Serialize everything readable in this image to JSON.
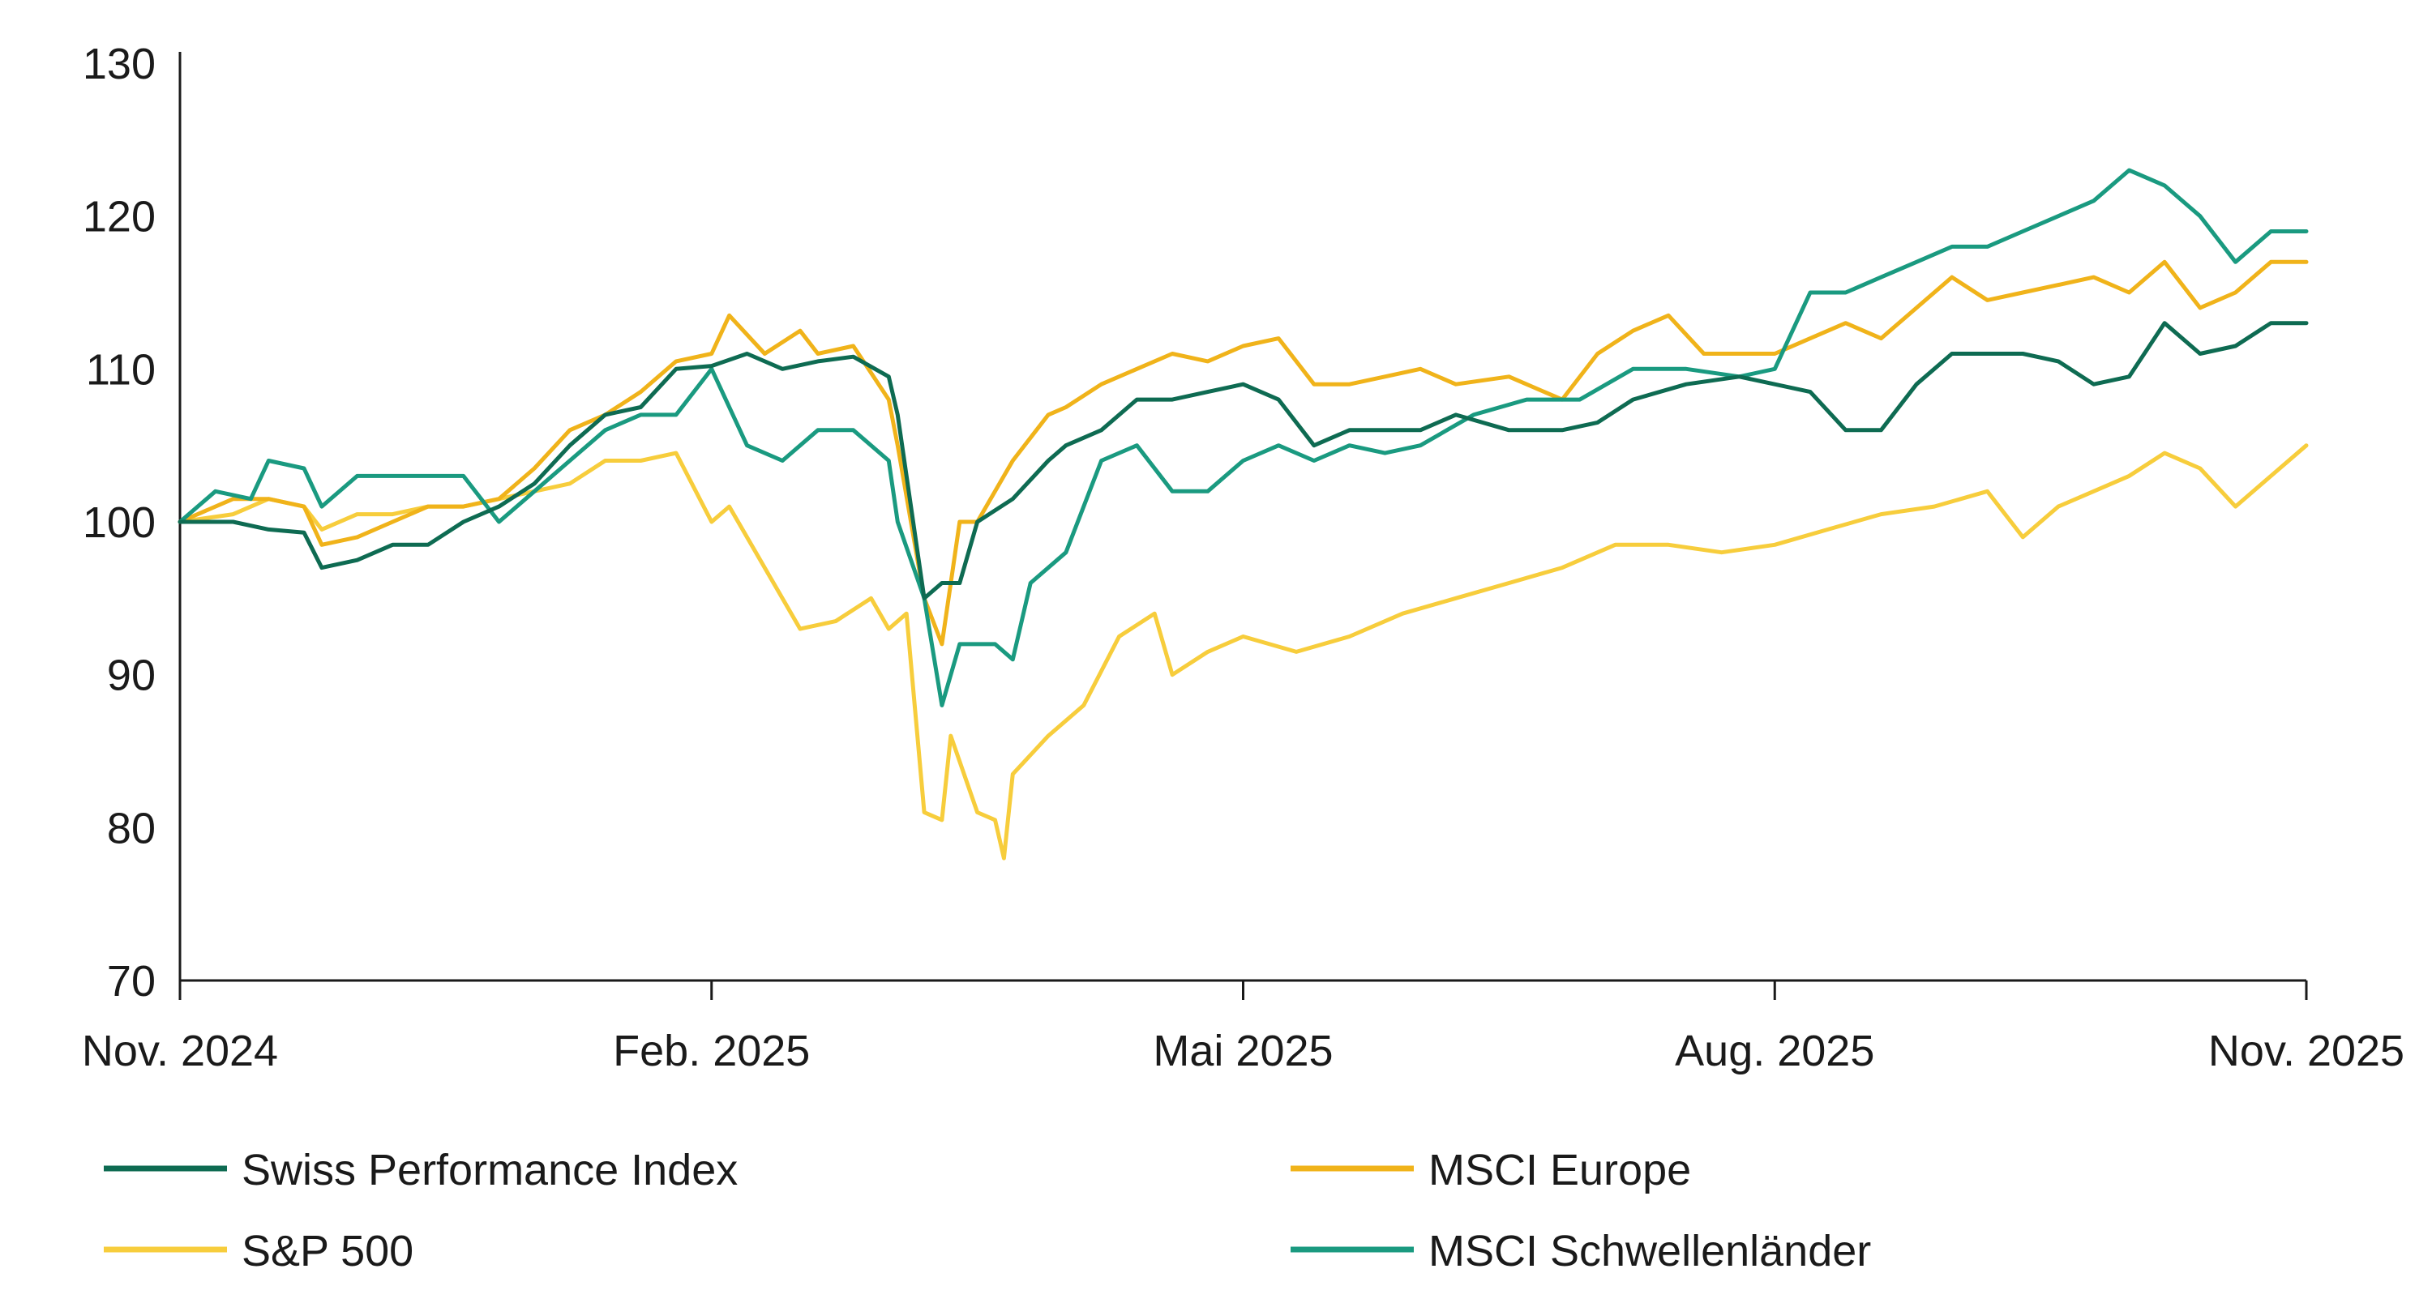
{
  "colors": {
    "swiss": "#0e6b52",
    "europe": "#f0b31a",
    "sp500": "#f7cd3c",
    "emerging": "#1a9a80",
    "axis": "#1a1a1a",
    "text": "#1a1a1a"
  },
  "chart_data": {
    "type": "line",
    "title": "",
    "xlabel": "",
    "ylabel": "",
    "ylim": [
      70,
      130
    ],
    "xlim": [
      0,
      12
    ],
    "grid": false,
    "legend_position": "bottom",
    "y_ticks": [
      {
        "value": 70,
        "label": "70"
      },
      {
        "value": 80,
        "label": "80"
      },
      {
        "value": 90,
        "label": "90"
      },
      {
        "value": 100,
        "label": "100"
      },
      {
        "value": 110,
        "label": "110"
      },
      {
        "value": 120,
        "label": "120"
      },
      {
        "value": 130,
        "label": "130"
      }
    ],
    "x_ticks": [
      {
        "value": 0,
        "label": "Nov. 2024"
      },
      {
        "value": 3,
        "label": "Feb. 2025"
      },
      {
        "value": 6,
        "label": "Mai 2025"
      },
      {
        "value": 9,
        "label": "Aug. 2025"
      },
      {
        "value": 12,
        "label": "Nov. 2025"
      }
    ],
    "series": [
      {
        "name": "Swiss Performance Index",
        "color_key": "swiss",
        "x": [
          0,
          0.3,
          0.5,
          0.7,
          0.8,
          1.0,
          1.2,
          1.4,
          1.6,
          1.8,
          2.0,
          2.2,
          2.4,
          2.6,
          2.8,
          3.0,
          3.2,
          3.4,
          3.6,
          3.8,
          4.0,
          4.05,
          4.2,
          4.3,
          4.4,
          4.5,
          4.7,
          4.9,
          5.0,
          5.2,
          5.4,
          5.6,
          5.8,
          6.0,
          6.2,
          6.4,
          6.6,
          6.8,
          7.0,
          7.2,
          7.5,
          7.8,
          8.0,
          8.2,
          8.5,
          8.8,
          9.0,
          9.2,
          9.4,
          9.6,
          9.8,
          10.0,
          10.2,
          10.4,
          10.6,
          10.8,
          11.0,
          11.2,
          11.4,
          11.6,
          11.8,
          12.0
        ],
        "values": [
          100,
          100,
          99.5,
          99.3,
          97,
          97.5,
          98.5,
          98.5,
          100,
          101,
          102.5,
          105,
          107,
          107.5,
          110,
          110.2,
          111,
          110,
          110.5,
          110.8,
          109.5,
          107,
          95,
          96,
          96,
          100,
          101.5,
          104,
          105,
          106,
          108,
          108,
          108.5,
          109,
          108,
          105,
          106,
          106,
          106,
          107,
          106,
          106,
          106.5,
          108,
          109,
          109.5,
          109,
          108.5,
          106,
          106,
          109,
          111,
          111,
          111,
          110.5,
          109,
          109.5,
          113,
          111,
          111.5,
          113,
          113
        ]
      },
      {
        "name": "MSCI Europe",
        "color_key": "europe",
        "x": [
          0,
          0.3,
          0.5,
          0.7,
          0.8,
          1.0,
          1.2,
          1.4,
          1.6,
          1.8,
          2.0,
          2.2,
          2.4,
          2.6,
          2.8,
          3.0,
          3.1,
          3.3,
          3.5,
          3.6,
          3.8,
          4.0,
          4.05,
          4.2,
          4.3,
          4.4,
          4.5,
          4.7,
          4.9,
          5.0,
          5.2,
          5.4,
          5.6,
          5.8,
          6.0,
          6.2,
          6.4,
          6.6,
          6.8,
          7.0,
          7.2,
          7.5,
          7.8,
          8.0,
          8.2,
          8.4,
          8.6,
          8.8,
          9.0,
          9.2,
          9.4,
          9.6,
          9.8,
          10.0,
          10.2,
          10.4,
          10.6,
          10.8,
          11.0,
          11.2,
          11.4,
          11.6,
          11.8,
          12.0
        ],
        "values": [
          100,
          101.5,
          101.5,
          101,
          98.5,
          99,
          100,
          101,
          101,
          101.5,
          103.5,
          106,
          107,
          108.5,
          110.5,
          111,
          113.5,
          111,
          112.5,
          111,
          111.5,
          108,
          105,
          95,
          92,
          100,
          100,
          104,
          107,
          107.5,
          109,
          110,
          111,
          110.5,
          111.5,
          112,
          109,
          109,
          109.5,
          110,
          109,
          109.5,
          108,
          111,
          112.5,
          113.5,
          111,
          111,
          111,
          112,
          113,
          112,
          114,
          116,
          114.5,
          115,
          115.5,
          116,
          115,
          117,
          114,
          115,
          117,
          117
        ]
      },
      {
        "name": "S&P 500",
        "color_key": "sp500",
        "x": [
          0,
          0.3,
          0.5,
          0.7,
          0.8,
          1.0,
          1.2,
          1.4,
          1.6,
          1.8,
          2.0,
          2.2,
          2.4,
          2.6,
          2.8,
          3.0,
          3.1,
          3.3,
          3.5,
          3.7,
          3.9,
          4.0,
          4.1,
          4.2,
          4.3,
          4.35,
          4.5,
          4.6,
          4.65,
          4.7,
          4.9,
          5.1,
          5.3,
          5.5,
          5.6,
          5.8,
          6.0,
          6.3,
          6.6,
          6.9,
          7.2,
          7.5,
          7.8,
          8.1,
          8.4,
          8.7,
          9.0,
          9.3,
          9.6,
          9.9,
          10.2,
          10.4,
          10.6,
          10.8,
          11.0,
          11.2,
          11.4,
          11.6,
          11.8,
          12.0
        ],
        "values": [
          100,
          100.5,
          101.5,
          101,
          99.5,
          100.5,
          100.5,
          101,
          101,
          101.5,
          102,
          102.5,
          104,
          104,
          104.5,
          100,
          101,
          97,
          93,
          93.5,
          95,
          93,
          94,
          81,
          80.5,
          86,
          81,
          80.5,
          78,
          83.5,
          86,
          88,
          92.5,
          94,
          90,
          91.5,
          92.5,
          91.5,
          92.5,
          94,
          95,
          96,
          97,
          98.5,
          98.5,
          98,
          98.5,
          99.5,
          100.5,
          101,
          102,
          99,
          101,
          102,
          103,
          104.5,
          103.5,
          101,
          103,
          105
        ]
      },
      {
        "name": "MSCI Schwellenländer",
        "color_key": "emerging",
        "x": [
          0,
          0.2,
          0.4,
          0.5,
          0.7,
          0.8,
          1.0,
          1.2,
          1.4,
          1.6,
          1.8,
          2.0,
          2.2,
          2.4,
          2.6,
          2.8,
          3.0,
          3.2,
          3.4,
          3.6,
          3.8,
          4.0,
          4.05,
          4.2,
          4.3,
          4.4,
          4.6,
          4.7,
          4.8,
          5.0,
          5.2,
          5.4,
          5.6,
          5.8,
          6.0,
          6.2,
          6.4,
          6.6,
          6.8,
          7.0,
          7.3,
          7.6,
          7.9,
          8.2,
          8.5,
          8.8,
          9.0,
          9.2,
          9.4,
          9.6,
          9.8,
          10.0,
          10.2,
          10.4,
          10.6,
          10.8,
          11.0,
          11.2,
          11.4,
          11.6,
          11.8,
          12.0
        ],
        "values": [
          100,
          102,
          101.5,
          104,
          103.5,
          101,
          103,
          103,
          103,
          103,
          100,
          102,
          104,
          106,
          107,
          107,
          110,
          105,
          104,
          106,
          106,
          104,
          100,
          95,
          88,
          92,
          92,
          91,
          96,
          98,
          104,
          105,
          102,
          102,
          104,
          105,
          104,
          105,
          104.5,
          105,
          107,
          108,
          108,
          110,
          110,
          109.5,
          110,
          115,
          115,
          116,
          117,
          118,
          118,
          119,
          120,
          121,
          123,
          122,
          120,
          117,
          119,
          119
        ]
      }
    ]
  }
}
